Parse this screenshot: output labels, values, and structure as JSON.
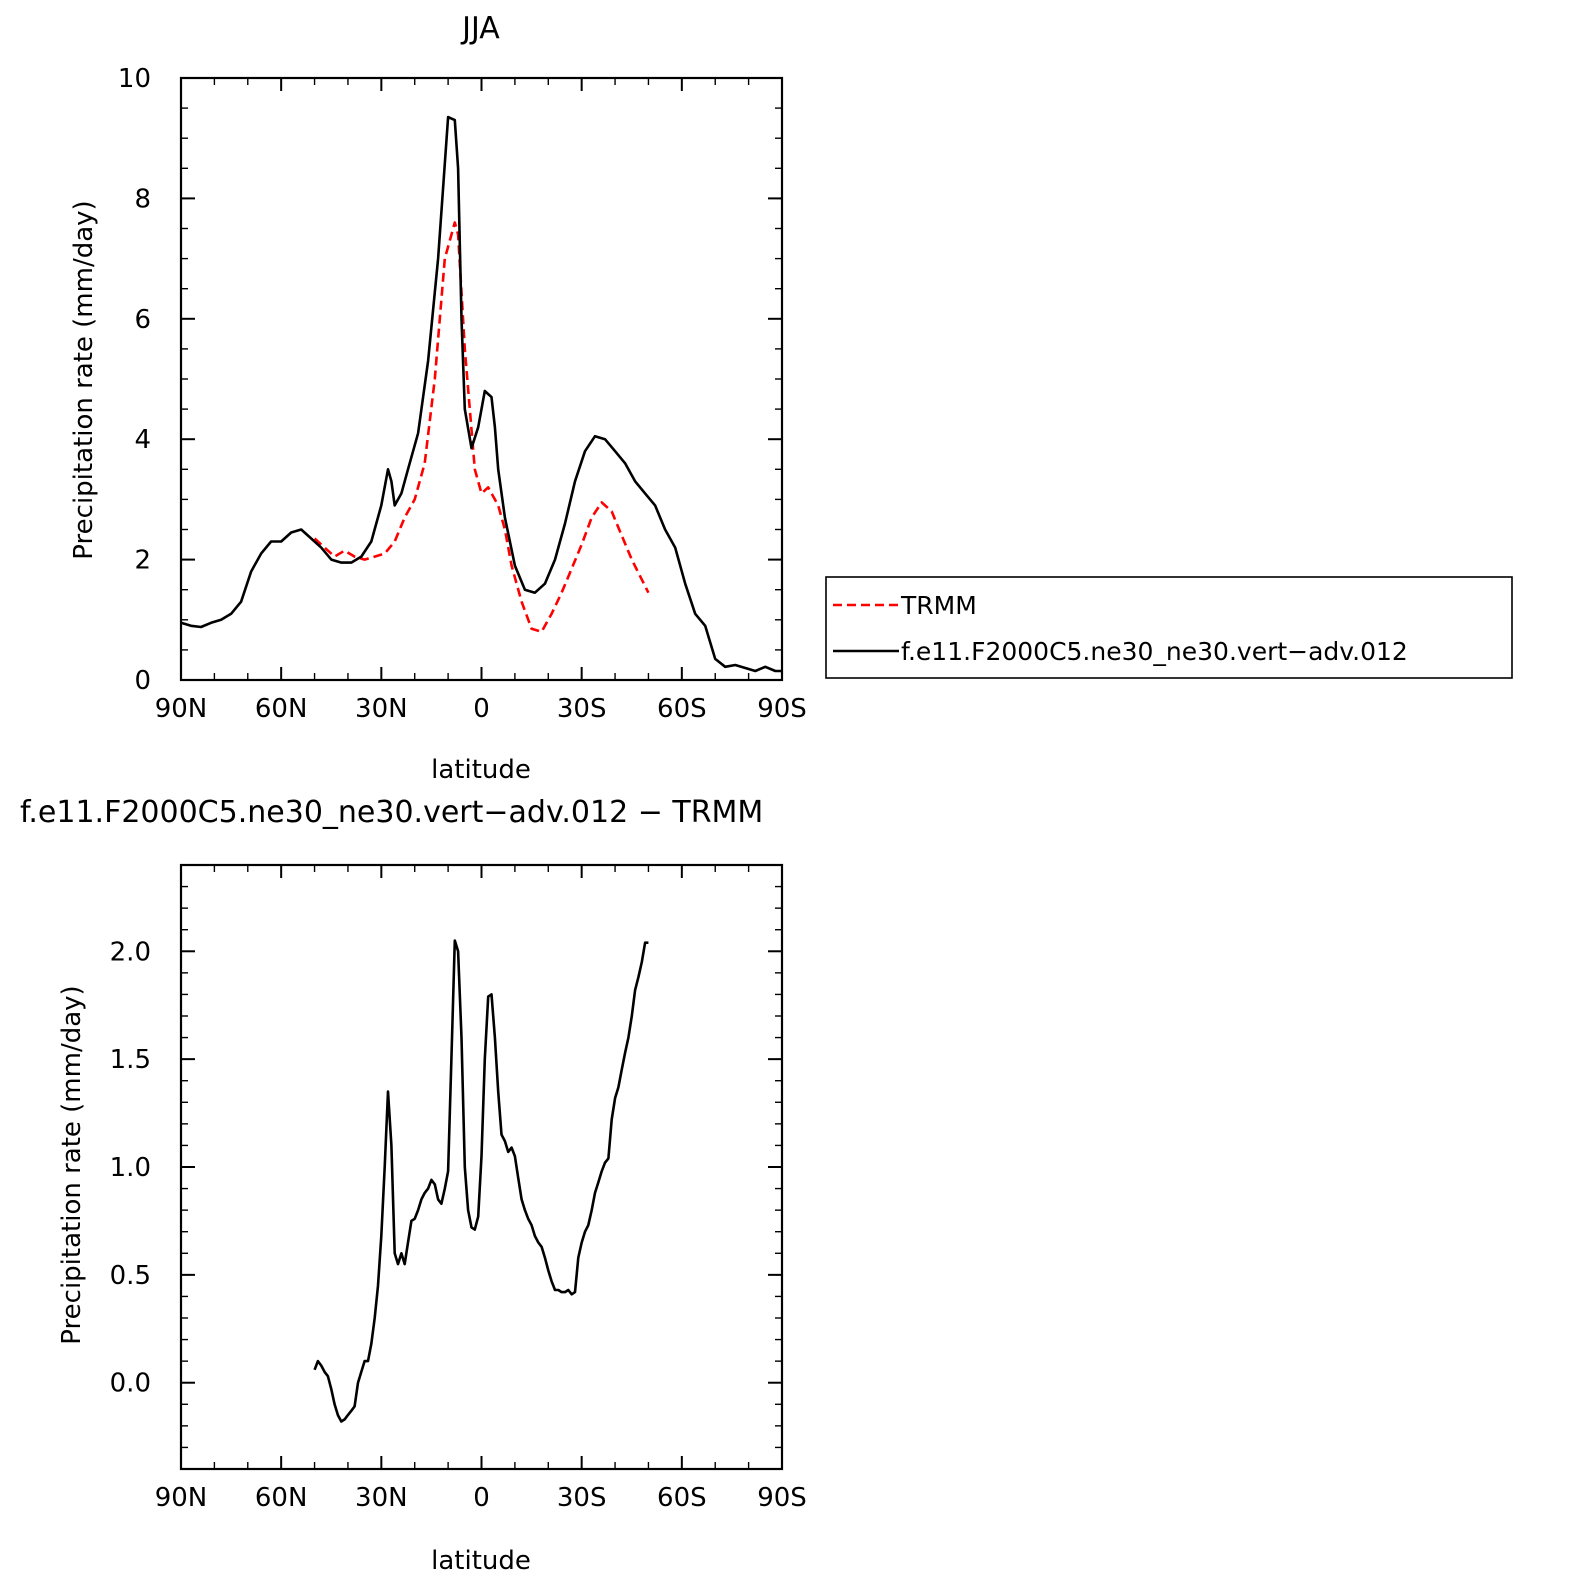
{
  "chart_data": [
    {
      "type": "line",
      "title": "JJA",
      "xlabel": "latitude",
      "ylabel": "Precipitation rate (mm/day)",
      "xlim": [
        90,
        -90
      ],
      "ylim": [
        0,
        10
      ],
      "x_tick_values": [
        90,
        60,
        30,
        0,
        -30,
        -60,
        -90
      ],
      "x_tick_labels": [
        "90N",
        "60N",
        "30N",
        "0",
        "30S",
        "60S",
        "90S"
      ],
      "y_tick_values": [
        0,
        2,
        4,
        6,
        8,
        10
      ],
      "y_tick_labels": [
        "0",
        "2",
        "4",
        "6",
        "8",
        "10"
      ],
      "grid": false,
      "legend_position": "right",
      "series": [
        {
          "name": "TRMM",
          "color": "#ff0000",
          "dash": true,
          "x": [
            50,
            47,
            44,
            41,
            38,
            35,
            32,
            29,
            26,
            23,
            20,
            17,
            14,
            11,
            8,
            7,
            5,
            2,
            0,
            -2,
            -5,
            -7,
            -9,
            -12,
            -15,
            -18,
            -21,
            -24,
            -27,
            -30,
            -33,
            -36,
            -39,
            -42,
            -45,
            -50
          ],
          "y": [
            2.35,
            2.2,
            2.05,
            2.15,
            2.05,
            2.0,
            2.05,
            2.1,
            2.3,
            2.7,
            3.0,
            3.6,
            5.0,
            7.0,
            7.6,
            7.4,
            5.5,
            3.5,
            3.1,
            3.2,
            2.9,
            2.5,
            1.9,
            1.3,
            0.85,
            0.8,
            1.1,
            1.45,
            1.85,
            2.25,
            2.7,
            2.95,
            2.8,
            2.4,
            2.0,
            1.45
          ]
        },
        {
          "name": "f.e11.F2000C5.ne30_ne30.vert−adv.012",
          "color": "#000000",
          "dash": false,
          "x": [
            90,
            87,
            84,
            81,
            78,
            75,
            72,
            69,
            66,
            63,
            60,
            57,
            54,
            51,
            48,
            45,
            42,
            39,
            36,
            33,
            30,
            28,
            27,
            26,
            24,
            22,
            19,
            16,
            13,
            10,
            8,
            7,
            6,
            5,
            3,
            1,
            -1,
            -3,
            -4,
            -5,
            -7,
            -10,
            -13,
            -16,
            -19,
            -22,
            -25,
            -28,
            -31,
            -34,
            -37,
            -40,
            -43,
            -46,
            -49,
            -52,
            -55,
            -58,
            -61,
            -64,
            -67,
            -70,
            -73,
            -76,
            -79,
            -82,
            -85,
            -88,
            -90
          ],
          "y": [
            0.95,
            0.9,
            0.88,
            0.95,
            1.0,
            1.1,
            1.3,
            1.8,
            2.1,
            2.3,
            2.3,
            2.45,
            2.5,
            2.35,
            2.2,
            2.0,
            1.95,
            1.95,
            2.05,
            2.3,
            2.9,
            3.5,
            3.3,
            2.9,
            3.1,
            3.5,
            4.1,
            5.3,
            7.0,
            9.35,
            9.3,
            8.5,
            6.0,
            4.5,
            3.85,
            4.2,
            4.8,
            4.7,
            4.2,
            3.5,
            2.7,
            1.9,
            1.5,
            1.45,
            1.6,
            2.0,
            2.6,
            3.3,
            3.8,
            4.05,
            4.0,
            3.8,
            3.6,
            3.3,
            3.1,
            2.9,
            2.5,
            2.2,
            1.6,
            1.1,
            0.9,
            0.35,
            0.22,
            0.25,
            0.2,
            0.15,
            0.22,
            0.15,
            0.15
          ]
        }
      ]
    },
    {
      "type": "line",
      "title": "f.e11.F2000C5.ne30_ne30.vert−adv.012 − TRMM",
      "xlabel": "latitude",
      "ylabel": "Precipitation rate (mm/day)",
      "xlim": [
        90,
        -90
      ],
      "ylim": [
        -0.4,
        2.4
      ],
      "x_tick_values": [
        90,
        60,
        30,
        0,
        -30,
        -60,
        -90
      ],
      "x_tick_labels": [
        "90N",
        "60N",
        "30N",
        "0",
        "30S",
        "60S",
        "90S"
      ],
      "y_tick_values": [
        0.0,
        0.5,
        1.0,
        1.5,
        2.0
      ],
      "y_tick_labels": [
        "0.0",
        "0.5",
        "1.0",
        "1.5",
        "2.0"
      ],
      "grid": false,
      "series": [
        {
          "color": "#000000",
          "dash": false,
          "x": [
            50,
            49,
            48,
            47,
            46,
            45,
            44,
            43,
            42,
            41,
            40,
            39,
            38,
            37,
            36,
            35,
            34,
            33,
            32,
            31,
            30,
            29,
            28,
            27,
            26,
            25,
            24,
            23,
            22,
            21,
            20,
            19,
            18,
            17,
            16,
            15,
            14,
            13,
            12,
            11,
            10,
            9,
            8,
            7,
            6,
            5,
            4,
            3,
            2,
            1,
            0,
            -1,
            -2,
            -3,
            -4,
            -5,
            -6,
            -7,
            -8,
            -9,
            -10,
            -11,
            -12,
            -13,
            -14,
            -15,
            -16,
            -17,
            -18,
            -19,
            -20,
            -21,
            -22,
            -23,
            -24,
            -25,
            -26,
            -27,
            -28,
            -29,
            -30,
            -31,
            -32,
            -33,
            -34,
            -35,
            -36,
            -37,
            -38,
            -39,
            -40,
            -41,
            -42,
            -43,
            -44,
            -45,
            -46,
            -47,
            -48,
            -49,
            -50
          ],
          "y": [
            0.06,
            0.1,
            0.08,
            0.05,
            0.03,
            -0.03,
            -0.1,
            -0.15,
            -0.18,
            -0.17,
            -0.15,
            -0.13,
            -0.11,
            0.0,
            0.05,
            0.1,
            0.1,
            0.18,
            0.3,
            0.45,
            0.68,
            1.0,
            1.35,
            1.1,
            0.6,
            0.55,
            0.6,
            0.55,
            0.65,
            0.75,
            0.76,
            0.8,
            0.85,
            0.88,
            0.9,
            0.94,
            0.92,
            0.85,
            0.83,
            0.9,
            0.98,
            1.5,
            2.05,
            2.0,
            1.6,
            1.0,
            0.8,
            0.72,
            0.71,
            0.77,
            1.05,
            1.5,
            1.79,
            1.8,
            1.6,
            1.35,
            1.15,
            1.12,
            1.07,
            1.09,
            1.05,
            0.95,
            0.85,
            0.8,
            0.76,
            0.73,
            0.68,
            0.65,
            0.63,
            0.58,
            0.52,
            0.47,
            0.43,
            0.43,
            0.42,
            0.42,
            0.43,
            0.41,
            0.42,
            0.58,
            0.65,
            0.7,
            0.73,
            0.8,
            0.88,
            0.93,
            0.98,
            1.02,
            1.04,
            1.22,
            1.32,
            1.37,
            1.45,
            1.53,
            1.6,
            1.7,
            1.82,
            1.88,
            1.95,
            2.04,
            2.04
          ]
        }
      ]
    }
  ]
}
